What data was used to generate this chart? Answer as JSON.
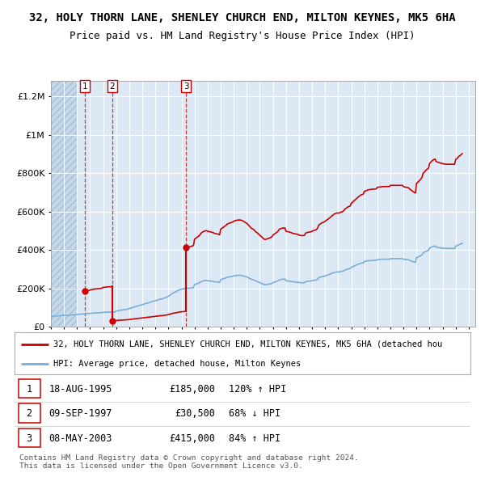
{
  "title": "32, HOLY THORN LANE, SHENLEY CHURCH END, MILTON KEYNES, MK5 6HA",
  "subtitle": "Price paid vs. HM Land Registry's House Price Index (HPI)",
  "title_fontsize": 10,
  "subtitle_fontsize": 9,
  "ylabel_labels": [
    "£0",
    "£200K",
    "£400K",
    "£600K",
    "£800K",
    "£1M",
    "£1.2M"
  ],
  "ylabel_values": [
    0,
    200000,
    400000,
    600000,
    800000,
    1000000,
    1200000
  ],
  "ylim": [
    0,
    1280000
  ],
  "xlim_start": 1993.0,
  "xlim_end": 2025.5,
  "hatch_end": 1995.0,
  "background_color": "#dce9f5",
  "grid_color": "#ffffff",
  "sale_dates": [
    1995.62,
    1997.69,
    2003.36
  ],
  "sale_prices": [
    185000,
    30500,
    415000
  ],
  "sale_labels": [
    "1",
    "2",
    "3"
  ],
  "red_line_color": "#cc0000",
  "blue_line_color": "#7aaed6",
  "legend_label_red": "32, HOLY THORN LANE, SHENLEY CHURCH END, MILTON KEYNES, MK5 6HA (detached hou",
  "legend_label_blue": "HPI: Average price, detached house, Milton Keynes",
  "table_rows": [
    [
      "1",
      "18-AUG-1995",
      "£185,000",
      "120% ↑ HPI"
    ],
    [
      "2",
      "09-SEP-1997",
      "£30,500",
      "68% ↓ HPI"
    ],
    [
      "3",
      "08-MAY-2003",
      "£415,000",
      "84% ↑ HPI"
    ]
  ],
  "footer_text": "Contains HM Land Registry data © Crown copyright and database right 2024.\nThis data is licensed under the Open Government Licence v3.0.",
  "hpi_x": [
    1993.0,
    1993.083,
    1993.167,
    1993.25,
    1993.333,
    1993.417,
    1993.5,
    1993.583,
    1993.667,
    1993.75,
    1993.833,
    1993.917,
    1994.0,
    1994.083,
    1994.167,
    1994.25,
    1994.333,
    1994.417,
    1994.5,
    1994.583,
    1994.667,
    1994.75,
    1994.833,
    1994.917,
    1995.0,
    1995.083,
    1995.167,
    1995.25,
    1995.333,
    1995.417,
    1995.5,
    1995.583,
    1995.667,
    1995.75,
    1995.833,
    1995.917,
    1996.0,
    1996.083,
    1996.167,
    1996.25,
    1996.333,
    1996.417,
    1996.5,
    1996.583,
    1996.667,
    1996.75,
    1996.833,
    1996.917,
    1997.0,
    1997.083,
    1997.167,
    1997.25,
    1997.333,
    1997.417,
    1997.5,
    1997.583,
    1997.667,
    1997.75,
    1997.833,
    1997.917,
    1998.0,
    1998.083,
    1998.167,
    1998.25,
    1998.333,
    1998.417,
    1998.5,
    1998.583,
    1998.667,
    1998.75,
    1998.833,
    1998.917,
    1999.0,
    1999.083,
    1999.167,
    1999.25,
    1999.333,
    1999.417,
    1999.5,
    1999.583,
    1999.667,
    1999.75,
    1999.833,
    1999.917,
    2000.0,
    2000.083,
    2000.167,
    2000.25,
    2000.333,
    2000.417,
    2000.5,
    2000.583,
    2000.667,
    2000.75,
    2000.833,
    2000.917,
    2001.0,
    2001.083,
    2001.167,
    2001.25,
    2001.333,
    2001.417,
    2001.5,
    2001.583,
    2001.667,
    2001.75,
    2001.833,
    2001.917,
    2002.0,
    2002.083,
    2002.167,
    2002.25,
    2002.333,
    2002.417,
    2002.5,
    2002.583,
    2002.667,
    2002.75,
    2002.833,
    2002.917,
    2003.0,
    2003.083,
    2003.167,
    2003.25,
    2003.333,
    2003.417,
    2003.5,
    2003.583,
    2003.667,
    2003.75,
    2003.833,
    2003.917,
    2004.0,
    2004.083,
    2004.167,
    2004.25,
    2004.333,
    2004.417,
    2004.5,
    2004.583,
    2004.667,
    2004.75,
    2004.833,
    2004.917,
    2005.0,
    2005.083,
    2005.167,
    2005.25,
    2005.333,
    2005.417,
    2005.5,
    2005.583,
    2005.667,
    2005.75,
    2005.833,
    2005.917,
    2006.0,
    2006.083,
    2006.167,
    2006.25,
    2006.333,
    2006.417,
    2006.5,
    2006.583,
    2006.667,
    2006.75,
    2006.833,
    2006.917,
    2007.0,
    2007.083,
    2007.167,
    2007.25,
    2007.333,
    2007.417,
    2007.5,
    2007.583,
    2007.667,
    2007.75,
    2007.833,
    2007.917,
    2008.0,
    2008.083,
    2008.167,
    2008.25,
    2008.333,
    2008.417,
    2008.5,
    2008.583,
    2008.667,
    2008.75,
    2008.833,
    2008.917,
    2009.0,
    2009.083,
    2009.167,
    2009.25,
    2009.333,
    2009.417,
    2009.5,
    2009.583,
    2009.667,
    2009.75,
    2009.833,
    2009.917,
    2010.0,
    2010.083,
    2010.167,
    2010.25,
    2010.333,
    2010.417,
    2010.5,
    2010.583,
    2010.667,
    2010.75,
    2010.833,
    2010.917,
    2011.0,
    2011.083,
    2011.167,
    2011.25,
    2011.333,
    2011.417,
    2011.5,
    2011.583,
    2011.667,
    2011.75,
    2011.833,
    2011.917,
    2012.0,
    2012.083,
    2012.167,
    2012.25,
    2012.333,
    2012.417,
    2012.5,
    2012.583,
    2012.667,
    2012.75,
    2012.833,
    2012.917,
    2013.0,
    2013.083,
    2013.167,
    2013.25,
    2013.333,
    2013.417,
    2013.5,
    2013.583,
    2013.667,
    2013.75,
    2013.833,
    2013.917,
    2014.0,
    2014.083,
    2014.167,
    2014.25,
    2014.333,
    2014.417,
    2014.5,
    2014.583,
    2014.667,
    2014.75,
    2014.833,
    2014.917,
    2015.0,
    2015.083,
    2015.167,
    2015.25,
    2015.333,
    2015.417,
    2015.5,
    2015.583,
    2015.667,
    2015.75,
    2015.833,
    2015.917,
    2016.0,
    2016.083,
    2016.167,
    2016.25,
    2016.333,
    2016.417,
    2016.5,
    2016.583,
    2016.667,
    2016.75,
    2016.833,
    2016.917,
    2017.0,
    2017.083,
    2017.167,
    2017.25,
    2017.333,
    2017.417,
    2017.5,
    2017.583,
    2017.667,
    2017.75,
    2017.833,
    2017.917,
    2018.0,
    2018.083,
    2018.167,
    2018.25,
    2018.333,
    2018.417,
    2018.5,
    2018.583,
    2018.667,
    2018.75,
    2018.833,
    2018.917,
    2019.0,
    2019.083,
    2019.167,
    2019.25,
    2019.333,
    2019.417,
    2019.5,
    2019.583,
    2019.667,
    2019.75,
    2019.833,
    2019.917,
    2020.0,
    2020.083,
    2020.167,
    2020.25,
    2020.333,
    2020.417,
    2020.5,
    2020.583,
    2020.667,
    2020.75,
    2020.833,
    2020.917,
    2021.0,
    2021.083,
    2021.167,
    2021.25,
    2021.333,
    2021.417,
    2021.5,
    2021.583,
    2021.667,
    2021.75,
    2021.833,
    2021.917,
    2022.0,
    2022.083,
    2022.167,
    2022.25,
    2022.333,
    2022.417,
    2022.5,
    2022.583,
    2022.667,
    2022.75,
    2022.833,
    2022.917,
    2023.0,
    2023.083,
    2023.167,
    2023.25,
    2023.333,
    2023.417,
    2023.5,
    2023.583,
    2023.667,
    2023.75,
    2023.833,
    2023.917,
    2024.0,
    2024.083,
    2024.167,
    2024.25,
    2024.333,
    2024.417,
    2024.5
  ],
  "hpi_y": [
    55000,
    55200,
    55400,
    55700,
    56000,
    56500,
    57000,
    57300,
    57700,
    58100,
    58500,
    58800,
    59000,
    59300,
    59700,
    60100,
    60500,
    60800,
    61000,
    61300,
    61700,
    62100,
    62500,
    63000,
    64000,
    64500,
    65000,
    65500,
    66000,
    66500,
    67000,
    67400,
    67800,
    68200,
    68600,
    69000,
    70000,
    70500,
    71000,
    71300,
    71700,
    72000,
    72000,
    72200,
    72500,
    72700,
    73000,
    73500,
    75000,
    75200,
    75400,
    75600,
    75800,
    76000,
    76000,
    76200,
    76400,
    76500,
    76700,
    77000,
    82000,
    83000,
    84000,
    85000,
    86000,
    87000,
    88000,
    88500,
    89000,
    90000,
    91000,
    92500,
    95000,
    96500,
    98000,
    100000,
    102000,
    104000,
    105000,
    107000,
    109000,
    111000,
    112000,
    113000,
    115000,
    117000,
    119000,
    121000,
    123000,
    124000,
    125000,
    127000,
    129000,
    131000,
    133000,
    134000,
    135000,
    137000,
    139000,
    141000,
    143000,
    144000,
    145000,
    147000,
    149000,
    151000,
    153000,
    155000,
    160000,
    163000,
    167000,
    171000,
    175000,
    178000,
    180000,
    183000,
    186000,
    189000,
    192000,
    194000,
    195000,
    197000,
    198000,
    199000,
    200000,
    200000,
    200000,
    200500,
    201000,
    202000,
    203000,
    204000,
    220000,
    222000,
    224000,
    226000,
    228000,
    231000,
    235000,
    237000,
    239000,
    240000,
    241000,
    241500,
    240000,
    239000,
    238500,
    238000,
    237000,
    236500,
    235000,
    234000,
    233500,
    233000,
    232000,
    231000,
    245000,
    247000,
    249000,
    251000,
    253000,
    255000,
    258000,
    259000,
    260000,
    261000,
    262000,
    263000,
    265000,
    266000,
    267000,
    267500,
    268000,
    268000,
    268000,
    267500,
    266000,
    265000,
    263000,
    261000,
    260000,
    257000,
    254000,
    251000,
    248000,
    246000,
    245000,
    242000,
    239000,
    237000,
    235000,
    232000,
    230000,
    227000,
    225000,
    222000,
    220000,
    219000,
    220000,
    221000,
    222000,
    223000,
    224000,
    226000,
    230000,
    232000,
    234000,
    236000,
    238000,
    241000,
    245000,
    246000,
    247000,
    247500,
    248000,
    248000,
    240000,
    239000,
    238500,
    238000,
    237000,
    236000,
    235000,
    234000,
    233500,
    233000,
    232500,
    232000,
    230000,
    229500,
    229000,
    229000,
    229000,
    229500,
    235000,
    236000,
    237000,
    237500,
    238000,
    238500,
    240000,
    241000,
    242000,
    243000,
    244000,
    247000,
    255000,
    257000,
    259000,
    261000,
    262000,
    263000,
    265000,
    267000,
    269000,
    271000,
    273000,
    275000,
    278000,
    280000,
    282000,
    284000,
    285000,
    286000,
    285000,
    286000,
    287000,
    288000,
    289000,
    291000,
    295000,
    297000,
    299000,
    301000,
    302000,
    303000,
    310000,
    312000,
    315000,
    317000,
    320000,
    322000,
    325000,
    327000,
    329000,
    331000,
    332000,
    333000,
    340000,
    341000,
    342000,
    343000,
    344000,
    344500,
    345000,
    345200,
    345500,
    345700,
    346000,
    346500,
    350000,
    350500,
    351000,
    351000,
    351500,
    352000,
    352000,
    352000,
    352000,
    352000,
    352000,
    352000,
    355000,
    355000,
    355000,
    355000,
    355000,
    355000,
    355000,
    355000,
    355000,
    355000,
    355000,
    355000,
    352000,
    351000,
    350500,
    350000,
    349500,
    348000,
    345000,
    343000,
    341000,
    339000,
    337000,
    336000,
    360000,
    362000,
    365000,
    368000,
    371000,
    375000,
    385000,
    388000,
    391000,
    394000,
    396000,
    398000,
    410000,
    413000,
    416000,
    418000,
    420000,
    421000,
    415000,
    414000,
    413000,
    412000,
    411000,
    410000,
    410000,
    409000,
    408500,
    408000,
    408000,
    408000,
    408000,
    408000,
    408000,
    408000,
    408000,
    408000,
    420000,
    422000,
    425000,
    428000,
    430000,
    432000,
    435000
  ]
}
